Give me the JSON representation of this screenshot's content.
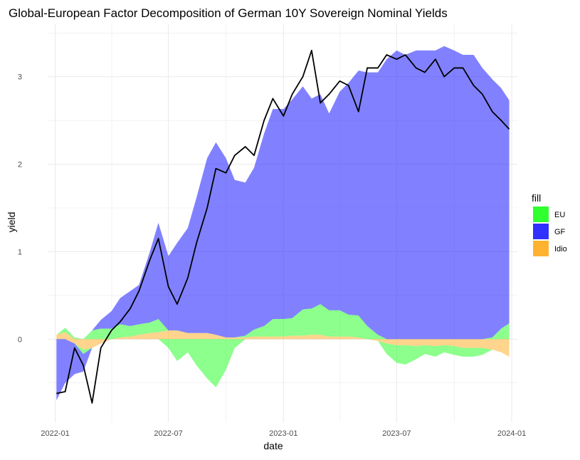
{
  "chart_data": {
    "type": "area",
    "title": "Global-European Factor Decomposition of German 10Y Sovereign Nominal Yields",
    "xlabel": "date",
    "ylabel": "yield",
    "x_tick_labels": [
      "2022-01",
      "2022-07",
      "2023-01",
      "2023-07",
      "2024-01"
    ],
    "x_tick_dates": [
      "2022-01-01",
      "2022-07-01",
      "2023-01-01",
      "2023-07-01",
      "2024-01-01"
    ],
    "y_ticks": [
      0,
      1,
      2,
      3
    ],
    "xlim": [
      "2021-12-20",
      "2024-01-10"
    ],
    "ylim": [
      -0.95,
      3.6
    ],
    "grid": true,
    "legend": {
      "title": "fill",
      "position": "right",
      "entries": [
        {
          "label": "EU",
          "color": "#1aff1a"
        },
        {
          "label": "GF",
          "color": "#1a1aff"
        },
        {
          "label": "Idio",
          "color": "#ffaa1a"
        }
      ]
    },
    "colors": {
      "EU_fill": "#1aff1a",
      "GF_fill": "#1a1aff",
      "Idio_fill": "#ffaa1a",
      "yield_line": "#000000",
      "grid": "#ebebeb"
    },
    "x": [
      "2022-01-03",
      "2022-01-17",
      "2022-02-01",
      "2022-02-15",
      "2022-03-01",
      "2022-03-15",
      "2022-04-01",
      "2022-04-15",
      "2022-05-01",
      "2022-05-15",
      "2022-06-01",
      "2022-06-15",
      "2022-07-01",
      "2022-07-15",
      "2022-08-01",
      "2022-08-15",
      "2022-09-01",
      "2022-09-15",
      "2022-10-01",
      "2022-10-15",
      "2022-11-01",
      "2022-11-15",
      "2022-12-01",
      "2022-12-15",
      "2023-01-01",
      "2023-01-15",
      "2023-02-01",
      "2023-02-15",
      "2023-03-01",
      "2023-03-15",
      "2023-04-01",
      "2023-04-15",
      "2023-05-01",
      "2023-05-15",
      "2023-06-01",
      "2023-06-15",
      "2023-07-01",
      "2023-07-15",
      "2023-08-01",
      "2023-08-15",
      "2023-09-01",
      "2023-09-15",
      "2023-10-01",
      "2023-10-15",
      "2023-11-01",
      "2023-11-15",
      "2023-12-01",
      "2023-12-15",
      "2023-12-28"
    ],
    "series": [
      {
        "name": "EU",
        "values": [
          0.0,
          0.05,
          0.02,
          -0.05,
          0.1,
          0.12,
          0.12,
          0.15,
          0.12,
          0.12,
          0.12,
          0.15,
          -0.1,
          -0.25,
          -0.15,
          -0.3,
          -0.45,
          -0.55,
          -0.35,
          -0.1,
          0.02,
          0.08,
          0.12,
          0.2,
          0.2,
          0.2,
          0.3,
          0.3,
          0.35,
          0.3,
          0.3,
          0.25,
          0.25,
          0.15,
          0.05,
          -0.12,
          -0.2,
          -0.22,
          -0.15,
          -0.1,
          -0.12,
          -0.08,
          -0.1,
          -0.1,
          -0.1,
          -0.08,
          0.02,
          0.12,
          0.18
        ]
      },
      {
        "name": "GF",
        "values": [
          -0.7,
          -0.5,
          -0.35,
          -0.2,
          0.0,
          0.1,
          0.2,
          0.3,
          0.4,
          0.45,
          0.8,
          1.1,
          0.85,
          1.0,
          1.2,
          1.55,
          2.0,
          2.2,
          2.05,
          1.8,
          1.75,
          1.85,
          2.2,
          2.4,
          2.4,
          2.5,
          2.55,
          2.4,
          2.4,
          2.25,
          2.5,
          2.65,
          2.8,
          2.9,
          3.0,
          3.2,
          3.3,
          3.25,
          3.3,
          3.3,
          3.3,
          3.35,
          3.3,
          3.25,
          3.25,
          3.1,
          2.95,
          2.75,
          2.55
        ]
      },
      {
        "name": "Idio",
        "values": [
          0.05,
          0.08,
          -0.05,
          -0.12,
          -0.1,
          -0.05,
          0.0,
          0.02,
          0.03,
          0.05,
          0.07,
          0.08,
          0.1,
          0.1,
          0.07,
          0.07,
          0.07,
          0.05,
          0.02,
          0.02,
          0.02,
          0.03,
          0.03,
          0.03,
          0.03,
          0.04,
          0.04,
          0.05,
          0.05,
          0.03,
          0.03,
          0.03,
          0.02,
          0.0,
          -0.02,
          -0.05,
          -0.07,
          -0.07,
          -0.08,
          -0.07,
          -0.08,
          -0.07,
          -0.08,
          -0.1,
          -0.1,
          -0.1,
          -0.12,
          -0.15,
          -0.2
        ]
      },
      {
        "name": "yield",
        "values": [
          -0.62,
          -0.6,
          -0.1,
          -0.3,
          -0.73,
          -0.1,
          0.1,
          0.2,
          0.35,
          0.55,
          0.9,
          1.15,
          0.6,
          0.4,
          0.7,
          1.1,
          1.5,
          1.95,
          1.9,
          2.1,
          2.2,
          2.1,
          2.5,
          2.75,
          2.55,
          2.8,
          3.0,
          3.3,
          2.7,
          2.8,
          2.95,
          2.9,
          2.6,
          3.1,
          3.1,
          3.25,
          3.2,
          3.25,
          3.1,
          3.05,
          3.2,
          3.0,
          3.1,
          3.1,
          2.9,
          2.8,
          2.6,
          2.5,
          2.4
        ]
      }
    ]
  }
}
